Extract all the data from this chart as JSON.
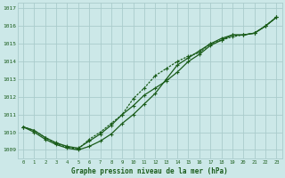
{
  "title": "Graphe pression niveau de la mer (hPa)",
  "bg_color": "#cce8e8",
  "grid_color": "#aacccc",
  "line_color": "#1a5c1a",
  "xlim": [
    -0.5,
    23.5
  ],
  "ylim": [
    1008.5,
    1017.3
  ],
  "xticks": [
    0,
    1,
    2,
    3,
    4,
    5,
    6,
    7,
    8,
    9,
    10,
    11,
    12,
    13,
    14,
    15,
    16,
    17,
    18,
    19,
    20,
    21,
    22,
    23
  ],
  "yticks": [
    1009,
    1010,
    1011,
    1012,
    1013,
    1014,
    1015,
    1016,
    1017
  ],
  "series1_x": [
    0,
    1,
    2,
    3,
    4,
    5,
    6,
    7,
    8,
    9,
    10,
    11,
    12,
    13,
    14,
    15,
    16,
    17,
    18,
    19,
    20,
    21,
    22,
    23
  ],
  "series1_y": [
    1010.3,
    1010.1,
    1009.7,
    1009.4,
    1009.2,
    1009.1,
    1009.5,
    1009.9,
    1010.4,
    1011.0,
    1011.5,
    1012.1,
    1012.5,
    1012.9,
    1013.4,
    1014.0,
    1014.4,
    1014.9,
    1015.2,
    1015.5,
    1015.5,
    1015.6,
    1016.0,
    1016.5
  ],
  "series2_x": [
    0,
    1,
    2,
    3,
    4,
    5,
    6,
    7,
    8,
    9,
    10,
    11,
    12,
    13,
    14,
    15,
    16,
    17,
    18,
    19,
    20,
    21,
    22,
    23
  ],
  "series2_y": [
    1010.3,
    1010.0,
    1009.6,
    1009.3,
    1009.1,
    1009.0,
    1009.2,
    1009.5,
    1009.9,
    1010.5,
    1011.0,
    1011.6,
    1012.2,
    1013.0,
    1013.8,
    1014.2,
    1014.6,
    1015.0,
    1015.3,
    1015.5,
    1015.5,
    1015.6,
    1016.0,
    1016.5
  ],
  "series3_x": [
    0,
    1,
    2,
    3,
    4,
    5,
    6,
    7,
    8,
    9,
    10,
    11,
    12,
    13,
    14,
    15,
    16,
    17,
    18,
    19,
    20,
    21,
    22,
    23
  ],
  "series3_y": [
    1010.3,
    1010.1,
    1009.7,
    1009.35,
    1009.15,
    1009.05,
    1009.6,
    1010.0,
    1010.5,
    1011.0,
    1011.9,
    1012.5,
    1013.2,
    1013.6,
    1014.0,
    1014.3,
    1014.5,
    1015.0,
    1015.2,
    1015.4,
    1015.5,
    1015.6,
    1016.0,
    1016.5
  ]
}
